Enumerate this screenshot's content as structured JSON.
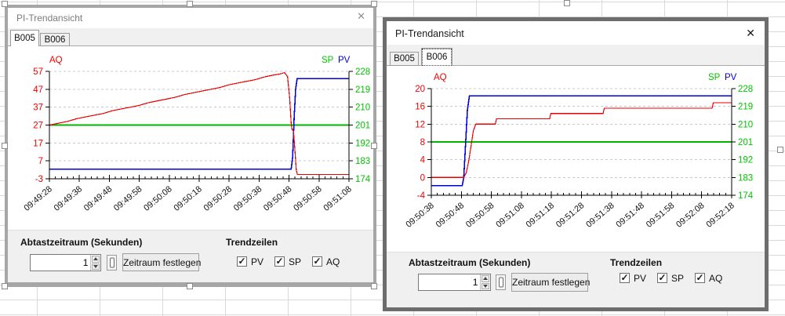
{
  "app": {
    "check_glyph": "✓",
    "grid_color": "#d9d9d9"
  },
  "colors": {
    "aq": "#ee0000",
    "sp": "#00b400",
    "pv": "#0000dc",
    "aq_label": "#f20000",
    "sp_label": "#00c300",
    "axis": "#000000"
  },
  "chart_data": [
    {
      "type": "line",
      "grid": "dashed-horizontal",
      "left_axis": {
        "label": "AQ",
        "color": "#f20000",
        "range": [
          -3,
          57
        ],
        "ticks": [
          57,
          47,
          37,
          27,
          17,
          7,
          -3
        ]
      },
      "right_axis": {
        "labels": [
          "SP",
          "PV"
        ],
        "color": "#00c300",
        "range": [
          174,
          228
        ],
        "ticks": [
          228,
          219,
          210,
          201,
          192,
          183,
          174
        ]
      },
      "x_axis": {
        "range": [
          0,
          100
        ],
        "tick_interval_seconds": 10,
        "tick_labels": [
          "09:49:28",
          "09:49:38",
          "09:49:48",
          "09:49:58",
          "09:50:08",
          "09:50:18",
          "09:50:28",
          "09:50:38",
          "09:50:48",
          "09:50:58",
          "09:51:08"
        ]
      },
      "series": [
        {
          "name": "SP",
          "axis": "right",
          "color": "#00b400",
          "points": [
            [
              0,
              201
            ],
            [
              100,
              201
            ]
          ]
        },
        {
          "name": "PV",
          "axis": "right",
          "color": "#0000dc",
          "points": [
            [
              0,
              178.8
            ],
            [
              80.7,
              178.8
            ],
            [
              81.2,
              185
            ],
            [
              81.7,
              205
            ],
            [
              82.2,
              219
            ],
            [
              82.7,
              224.4
            ],
            [
              100,
              224.4
            ]
          ]
        },
        {
          "name": "AQ",
          "axis": "left",
          "color": "#ee0000",
          "points": [
            [
              0,
              27
            ],
            [
              3,
              28
            ],
            [
              6,
              29
            ],
            [
              9,
              30.5
            ],
            [
              12,
              31.5
            ],
            [
              15,
              32.5
            ],
            [
              18,
              33.5
            ],
            [
              21,
              35
            ],
            [
              24,
              36
            ],
            [
              27,
              37
            ],
            [
              30,
              38
            ],
            [
              33,
              39.5
            ],
            [
              36,
              40.5
            ],
            [
              39,
              41.5
            ],
            [
              42,
              42.5
            ],
            [
              45,
              44
            ],
            [
              48,
              45
            ],
            [
              51,
              46
            ],
            [
              54,
              47
            ],
            [
              57,
              48
            ],
            [
              60,
              49.5
            ],
            [
              63,
              50.5
            ],
            [
              66,
              51.5
            ],
            [
              69,
              52.5
            ],
            [
              72,
              54
            ],
            [
              75,
              55
            ],
            [
              77,
              55.5
            ],
            [
              78.5,
              56.3
            ],
            [
              79.5,
              54
            ],
            [
              80.2,
              42
            ],
            [
              80.7,
              28
            ],
            [
              81,
              24.5
            ],
            [
              81.5,
              23.5
            ],
            [
              81.9,
              14
            ],
            [
              82.4,
              2
            ],
            [
              82.8,
              -0.6
            ],
            [
              100,
              -0.6
            ]
          ]
        }
      ]
    },
    {
      "type": "line",
      "grid": "dashed-horizontal",
      "left_axis": {
        "label": "AQ",
        "color": "#f20000",
        "range": [
          -4,
          20
        ],
        "ticks": [
          20,
          16,
          12,
          8,
          4,
          0,
          -4
        ]
      },
      "right_axis": {
        "labels": [
          "SP",
          "PV"
        ],
        "color": "#00c300",
        "range": [
          174,
          228
        ],
        "ticks": [
          228,
          219,
          210,
          201,
          192,
          183,
          174
        ]
      },
      "x_axis": {
        "range": [
          0,
          100
        ],
        "tick_interval_seconds": 10,
        "tick_labels": [
          "09:50:38",
          "09:50:48",
          "09:50:58",
          "09:51:08",
          "09:51:18",
          "09:51:28",
          "09:51:38",
          "09:51:48",
          "09:51:58",
          "09:52:08",
          "09:52:18"
        ]
      },
      "series": [
        {
          "name": "SP",
          "axis": "right",
          "color": "#00b400",
          "points": [
            [
              0,
              201
            ],
            [
              100,
              201
            ]
          ]
        },
        {
          "name": "PV",
          "axis": "right",
          "color": "#0000dc",
          "points": [
            [
              0,
              178.8
            ],
            [
              10.3,
              178.8
            ],
            [
              10.8,
              183
            ],
            [
              11.4,
              200
            ],
            [
              12,
              217
            ],
            [
              12.7,
              224.3
            ],
            [
              100,
              224.3
            ]
          ]
        },
        {
          "name": "AQ",
          "axis": "left",
          "color": "#ee0000",
          "points": [
            [
              0,
              0
            ],
            [
              10.8,
              0
            ],
            [
              11.6,
              1
            ],
            [
              12.4,
              3.5
            ],
            [
              13.2,
              7
            ],
            [
              14,
              10.5
            ],
            [
              14.8,
              12
            ],
            [
              21.3,
              12
            ],
            [
              21.7,
              13.2
            ],
            [
              39.4,
              13.2
            ],
            [
              39.8,
              14.4
            ],
            [
              57.2,
              14.4
            ],
            [
              57.6,
              15.6
            ],
            [
              93.5,
              15.6
            ],
            [
              93.9,
              16.8
            ],
            [
              100,
              16.8
            ]
          ]
        }
      ]
    }
  ],
  "windows": [
    {
      "title": "PI-Trendansicht",
      "close_icon": "✕",
      "active": false,
      "tabs": [
        {
          "label": "B005",
          "active": true
        },
        {
          "label": "B006",
          "active": false
        }
      ],
      "controls": {
        "sample_period_label": "Abtastzeitraum (Sekunden)",
        "sample_period_value": "1",
        "set_period_button": "Zeitraum festlegen",
        "trend_lines_label": "Trendzeilen",
        "checkboxes": [
          {
            "label": "PV",
            "checked": true
          },
          {
            "label": "SP",
            "checked": true
          },
          {
            "label": "AQ",
            "checked": true
          }
        ]
      }
    },
    {
      "title": "PI-Trendansicht",
      "close_icon": "✕",
      "active": true,
      "tabs": [
        {
          "label": "B005",
          "active": false
        },
        {
          "label": "B006",
          "active": true
        }
      ],
      "controls": {
        "sample_period_label": "Abtastzeitraum (Sekunden)",
        "sample_period_value": "1",
        "set_period_button": "Zeitraum festlegen",
        "trend_lines_label": "Trendzeilen",
        "checkboxes": [
          {
            "label": "PV",
            "checked": true
          },
          {
            "label": "SP",
            "checked": true
          },
          {
            "label": "AQ",
            "checked": true
          }
        ]
      }
    }
  ]
}
